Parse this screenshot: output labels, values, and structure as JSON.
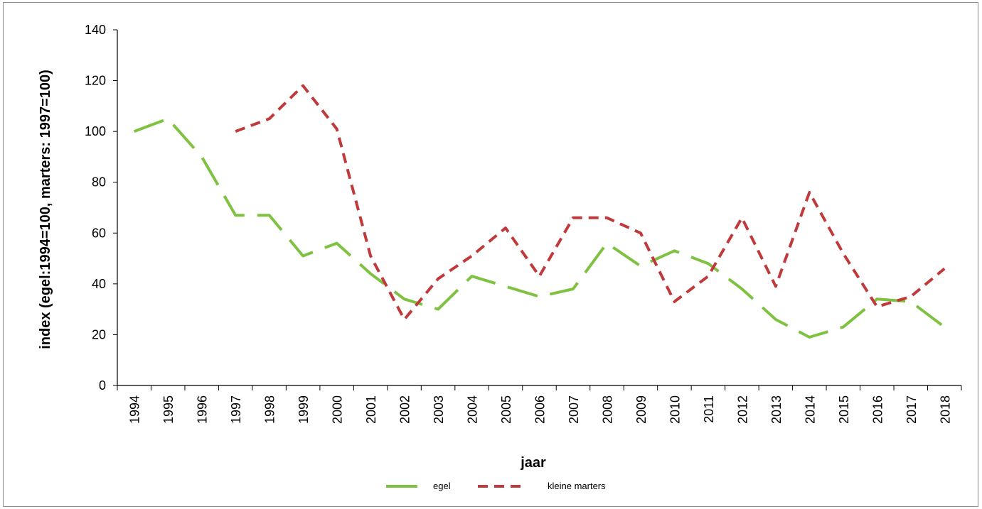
{
  "chart_data": {
    "type": "line",
    "title": "",
    "xlabel": "jaar",
    "ylabel": "index (egel:1994=100, marters: 1997=100)",
    "ylim": [
      0,
      140
    ],
    "yticks": [
      0,
      20,
      40,
      60,
      80,
      100,
      120,
      140
    ],
    "categories": [
      "1994",
      "1995",
      "1996",
      "1997",
      "1998",
      "1999",
      "2000",
      "2001",
      "2002",
      "2003",
      "2004",
      "2005",
      "2006",
      "2007",
      "2008",
      "2009",
      "2010",
      "2011",
      "2012",
      "2013",
      "2014",
      "2015",
      "2016",
      "2017",
      "2018"
    ],
    "grid": false,
    "legend_position": "bottom",
    "series": [
      {
        "name": "egel",
        "color": "#7fc241",
        "dash": "long-dash",
        "values": [
          100,
          105,
          90,
          67,
          67,
          51,
          56,
          44,
          34,
          30,
          43,
          39,
          35,
          38,
          56,
          47,
          53,
          48,
          38,
          26,
          19,
          23,
          34,
          33,
          23
        ]
      },
      {
        "name": "kleine marters",
        "color": "#c0393b",
        "dash": "short-dash",
        "values": [
          null,
          null,
          null,
          100,
          105,
          118,
          101,
          51,
          26,
          42,
          51,
          62,
          43,
          66,
          66,
          60,
          33,
          43,
          66,
          39,
          76,
          52,
          31,
          35,
          46
        ]
      }
    ]
  }
}
